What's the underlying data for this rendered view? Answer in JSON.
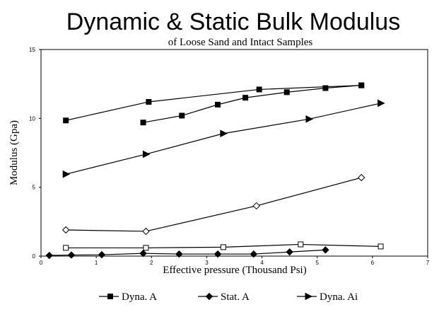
{
  "chart_data": {
    "type": "line",
    "title": "Dynamic & Static Bulk Modulus",
    "subtitle": "of Loose Sand and Intact Samples",
    "x_label": "Effective pressure (Thousand Psi)",
    "y_label": "Modulus (Gpa)",
    "xlim": [
      0,
      7
    ],
    "xticks": [
      0,
      1,
      2,
      3,
      4,
      5,
      6,
      7
    ],
    "ylim": [
      0,
      15
    ],
    "yticks": [
      0,
      5,
      10,
      15
    ],
    "legend": "bottom",
    "series": [
      {
        "name": "Dyna. A",
        "color": "#000000",
        "marker": "square-filled",
        "x": [
          1.85,
          2.55,
          3.2,
          3.7,
          4.45,
          5.15,
          5.8
        ],
        "values": [
          9.7,
          10.2,
          11.0,
          11.5,
          11.9,
          12.2,
          12.4
        ]
      },
      {
        "name": "Stat. A",
        "color": "#000000",
        "marker": "diamond-filled",
        "x": [
          0.15,
          0.55,
          1.1,
          1.85,
          2.5,
          3.2,
          3.85,
          4.5,
          5.15
        ],
        "values": [
          0.05,
          0.08,
          0.1,
          0.2,
          0.15,
          0.15,
          0.15,
          0.3,
          0.45
        ]
      },
      {
        "name": "Dyna. Ai",
        "color": "#000000",
        "marker": "triangle-right",
        "x": [
          0.45,
          1.9,
          3.3,
          4.85,
          6.15
        ],
        "values": [
          5.95,
          7.4,
          8.9,
          9.95,
          11.1
        ]
      },
      {
        "color": "#000000",
        "marker": "square-filled",
        "x": [
          0.45,
          1.95,
          3.95,
          5.8
        ],
        "values": [
          9.85,
          11.2,
          12.1,
          12.4
        ]
      },
      {
        "color": "#000000",
        "marker": "diamond-open",
        "x": [
          0.45,
          1.9,
          3.9,
          5.8
        ],
        "values": [
          1.9,
          1.8,
          3.65,
          5.7
        ]
      },
      {
        "color": "#000000",
        "marker": "square-open",
        "x": [
          0.45,
          1.9,
          3.3,
          4.7,
          6.15
        ],
        "values": [
          0.6,
          0.6,
          0.65,
          0.85,
          0.7
        ]
      }
    ]
  }
}
